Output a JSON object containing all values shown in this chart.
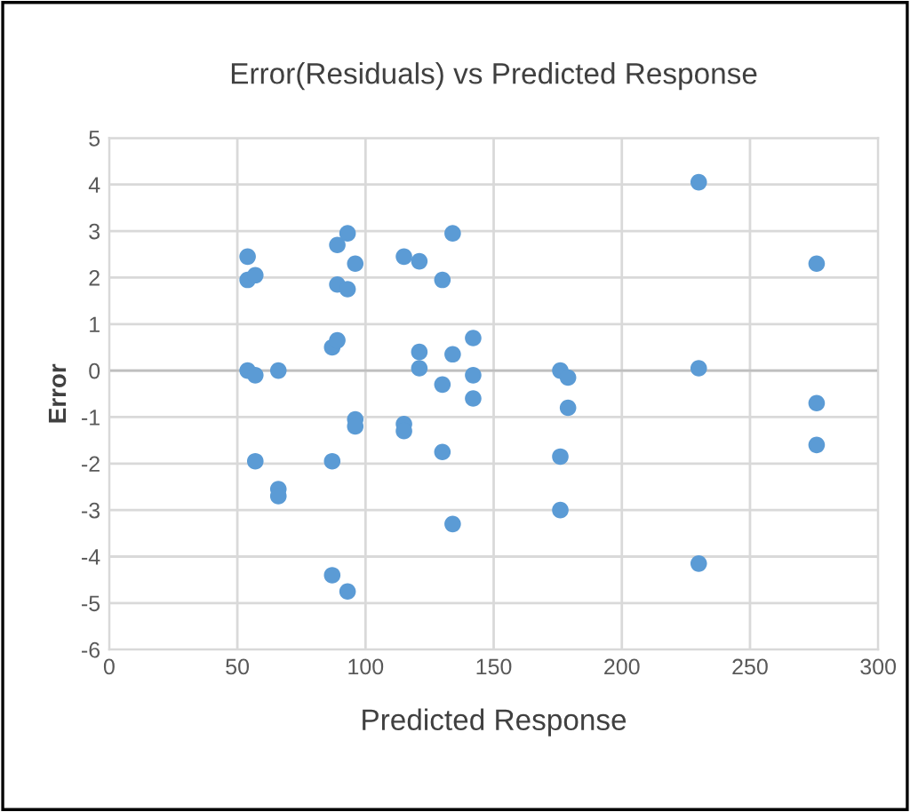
{
  "chart_data": {
    "type": "scatter",
    "title": "Error(Residuals) vs Predicted Response",
    "xlabel": "Predicted Response",
    "ylabel": "Error",
    "x": [
      54,
      54,
      57,
      54,
      56,
      57,
      57,
      66,
      66,
      66,
      89,
      93,
      96,
      89,
      93,
      87,
      89,
      96,
      96,
      87,
      87,
      93,
      115,
      121,
      115,
      115,
      121,
      121,
      134,
      130,
      134,
      130,
      130,
      134,
      142,
      142,
      142,
      176,
      178,
      179,
      179,
      176,
      176,
      230,
      230,
      230,
      276,
      276,
      276
    ],
    "values": [
      2.45,
      1.95,
      2.05,
      0,
      null,
      -0.1,
      -1.95,
      0,
      -2.55,
      -2.7,
      2.7,
      2.95,
      2.3,
      1.85,
      1.75,
      0.5,
      0.65,
      -1.05,
      -1.2,
      -1.95,
      -4.4,
      -4.75,
      2.45,
      2.35,
      -1.15,
      -1.3,
      0.4,
      0.05,
      2.95,
      1.95,
      0.35,
      -0.3,
      -1.75,
      -3.3,
      0.7,
      -0.1,
      -0.6,
      0,
      null,
      -0.15,
      -0.8,
      -1.85,
      -3.0,
      4.05,
      0.05,
      -4.15,
      2.3,
      -0.7,
      -1.6
    ],
    "color": "#5b9bd5",
    "marker": "circle",
    "grid": true,
    "xlim": [
      0,
      300
    ],
    "xticks": [
      0,
      50,
      100,
      150,
      200,
      250,
      300
    ],
    "ylim": [
      -6,
      5
    ],
    "yticks": [
      -6,
      -5,
      -4,
      -3,
      -2,
      -1,
      0,
      1,
      2,
      3,
      4,
      5
    ]
  }
}
